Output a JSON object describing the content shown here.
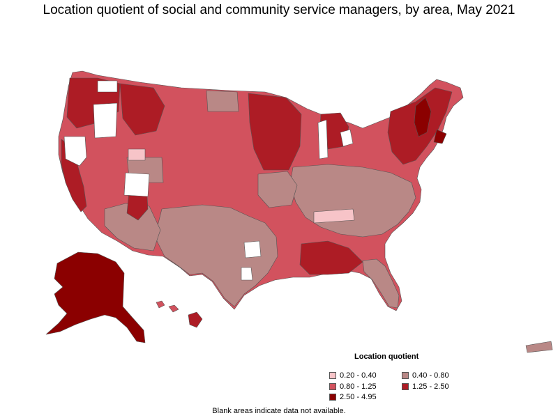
{
  "title": "Location quotient of social and community service managers, by area, May 2021",
  "legend": {
    "title": "Location quotient",
    "items": [
      {
        "label": "0.20 - 0.40",
        "color": "#f7c4c8"
      },
      {
        "label": "0.40 - 0.80",
        "color": "#b98886"
      },
      {
        "label": "0.80 - 1.25",
        "color": "#d2525e"
      },
      {
        "label": "1.25 - 2.50",
        "color": "#ad1c25"
      },
      {
        "label": "2.50 - 4.95",
        "color": "#8b0000"
      }
    ]
  },
  "footnote": "Blank areas indicate data not available.",
  "map_colors": {
    "border": "#555555",
    "no_data": "#ffffff"
  }
}
